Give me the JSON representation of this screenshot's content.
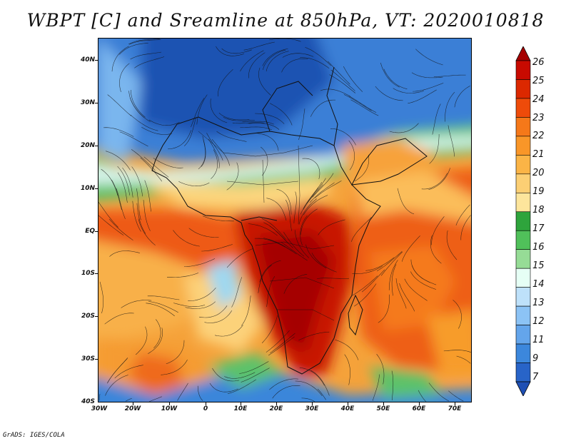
{
  "title": "WBPT [C] and Sreamline at 850hPa, VT: 2020010818",
  "credit": "GrADS: IGES/COLA",
  "map": {
    "projection": "latlon",
    "lon_range": [
      -30,
      75
    ],
    "lat_range": [
      -40,
      45
    ],
    "lat_labels": [
      "40N",
      "30N",
      "20N",
      "10N",
      "EQ",
      "10S",
      "20S",
      "30S",
      "40S"
    ],
    "lon_labels": [
      "30W",
      "20W",
      "10W",
      "0",
      "10E",
      "20E",
      "30E",
      "40E",
      "50E",
      "60E",
      "70E"
    ],
    "field": "wet-bulb potential temperature",
    "overlay": "streamlines"
  },
  "colorbar": {
    "labels": [
      "26",
      "25",
      "24",
      "23",
      "22",
      "21",
      "20",
      "19",
      "18",
      "17",
      "16",
      "15",
      "14",
      "13",
      "12",
      "11",
      "9",
      "7"
    ],
    "colors": [
      "#a50000",
      "#c80a00",
      "#dc2800",
      "#ee4b0a",
      "#f57819",
      "#f99628",
      "#fbb446",
      "#fccf74",
      "#fde59c",
      "#2ea43c",
      "#50c05a",
      "#96dc96",
      "#e6fff5",
      "#bee1fa",
      "#8cc3f5",
      "#64a5eb",
      "#3c87dc",
      "#2864c8",
      "#1e4fb4"
    ]
  }
}
